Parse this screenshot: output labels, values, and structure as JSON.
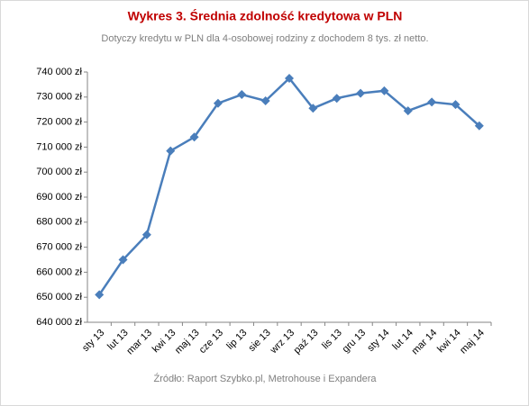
{
  "chart_data": {
    "type": "line",
    "title": "Wykres 3. Średnia zdolność kredytowa w PLN",
    "subtitle": "Dotyczy kredytu w PLN dla 4-osobowej rodziny z dochodem 8 tys. zł netto.",
    "source": "Źródło: Raport Szybko.pl, Metrohouse i Expandera",
    "categories": [
      "sty 13",
      "lut 13",
      "mar 13",
      "kwi 13",
      "maj 13",
      "cze 13",
      "lip 13",
      "sie 13",
      "wrz 13",
      "paź 13",
      "lis 13",
      "gru 13",
      "sty 14",
      "lut 14",
      "mar 14",
      "kwi 14",
      "maj 14"
    ],
    "series": [
      {
        "color": "#4a7ebb",
        "values": [
          651000,
          665000,
          675000,
          708500,
          714000,
          727500,
          731000,
          728500,
          737500,
          725500,
          729500,
          731500,
          732500,
          724500,
          728000,
          727000,
          718500
        ]
      }
    ],
    "ylim": [
      640000,
      740000
    ],
    "yticks": [
      {
        "value": 640000,
        "label": "640 000 zł"
      },
      {
        "value": 650000,
        "label": "650 000 zł"
      },
      {
        "value": 660000,
        "label": "660 000 zł"
      },
      {
        "value": 670000,
        "label": "670 000 zł"
      },
      {
        "value": 680000,
        "label": "680 000 zł"
      },
      {
        "value": 690000,
        "label": "690 000 zł"
      },
      {
        "value": 700000,
        "label": "700 000 zł"
      },
      {
        "value": 710000,
        "label": "710 000 zł"
      },
      {
        "value": 720000,
        "label": "720 000 zł"
      },
      {
        "value": 730000,
        "label": "730 000 zł"
      },
      {
        "value": 740000,
        "label": "740 000 zł"
      }
    ],
    "grid": false
  }
}
